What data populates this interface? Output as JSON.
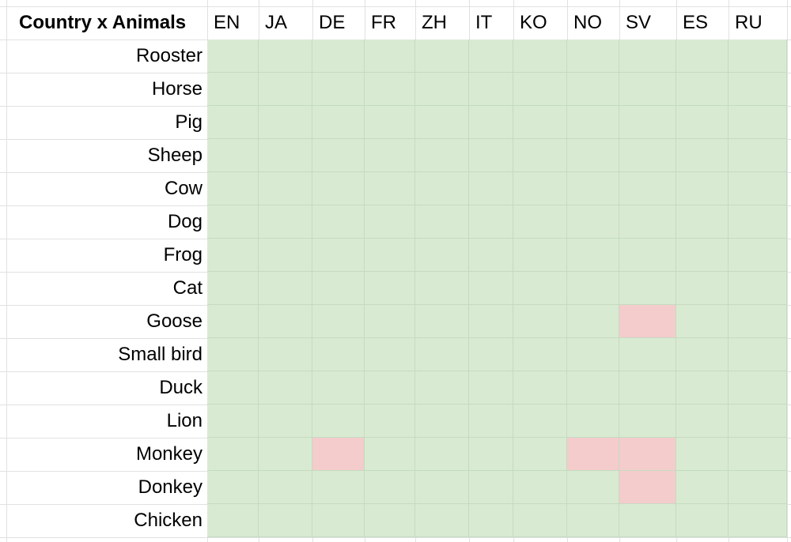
{
  "spreadsheet": {
    "corner_title": "Country x Animals",
    "columns": [
      "EN",
      "JA",
      "DE",
      "FR",
      "ZH",
      "IT",
      "KO",
      "NO",
      "SV",
      "ES",
      "RU"
    ],
    "rows": [
      {
        "label": "Rooster",
        "statuses": [
          "match",
          "match",
          "match",
          "match",
          "match",
          "match",
          "match",
          "match",
          "match",
          "match",
          "match"
        ]
      },
      {
        "label": "Horse",
        "statuses": [
          "match",
          "match",
          "match",
          "match",
          "match",
          "match",
          "match",
          "match",
          "match",
          "match",
          "match"
        ]
      },
      {
        "label": "Pig",
        "statuses": [
          "match",
          "match",
          "match",
          "match",
          "match",
          "match",
          "match",
          "match",
          "match",
          "match",
          "match"
        ]
      },
      {
        "label": "Sheep",
        "statuses": [
          "match",
          "match",
          "match",
          "match",
          "match",
          "match",
          "match",
          "match",
          "match",
          "match",
          "match"
        ]
      },
      {
        "label": "Cow",
        "statuses": [
          "match",
          "match",
          "match",
          "match",
          "match",
          "match",
          "match",
          "match",
          "match",
          "match",
          "match"
        ]
      },
      {
        "label": "Dog",
        "statuses": [
          "match",
          "match",
          "match",
          "match",
          "match",
          "match",
          "match",
          "match",
          "match",
          "match",
          "match"
        ]
      },
      {
        "label": "Frog",
        "statuses": [
          "match",
          "match",
          "match",
          "match",
          "match",
          "match",
          "match",
          "match",
          "match",
          "match",
          "match"
        ]
      },
      {
        "label": "Cat",
        "statuses": [
          "match",
          "match",
          "match",
          "match",
          "match",
          "match",
          "match",
          "match",
          "match",
          "match",
          "match"
        ]
      },
      {
        "label": "Goose",
        "statuses": [
          "match",
          "match",
          "match",
          "match",
          "match",
          "match",
          "match",
          "match",
          "mismatch",
          "match",
          "match"
        ]
      },
      {
        "label": "Small bird",
        "statuses": [
          "match",
          "match",
          "match",
          "match",
          "match",
          "match",
          "match",
          "match",
          "match",
          "match",
          "match"
        ]
      },
      {
        "label": "Duck",
        "statuses": [
          "match",
          "match",
          "match",
          "match",
          "match",
          "match",
          "match",
          "match",
          "match",
          "match",
          "match"
        ]
      },
      {
        "label": "Lion",
        "statuses": [
          "match",
          "match",
          "match",
          "match",
          "match",
          "match",
          "match",
          "match",
          "match",
          "match",
          "match"
        ]
      },
      {
        "label": "Monkey",
        "statuses": [
          "match",
          "match",
          "mismatch",
          "match",
          "match",
          "match",
          "match",
          "mismatch",
          "mismatch",
          "match",
          "match"
        ]
      },
      {
        "label": "Donkey",
        "statuses": [
          "match",
          "match",
          "match",
          "match",
          "match",
          "match",
          "match",
          "match",
          "mismatch",
          "match",
          "match"
        ]
      },
      {
        "label": "Chicken",
        "statuses": [
          "match",
          "match",
          "match",
          "match",
          "match",
          "match",
          "match",
          "match",
          "match",
          "match",
          "match"
        ]
      }
    ]
  },
  "colors": {
    "match_fill": "#d9ead3",
    "mismatch_fill": "#f4cccc",
    "gridline": "#e1e1e1"
  }
}
